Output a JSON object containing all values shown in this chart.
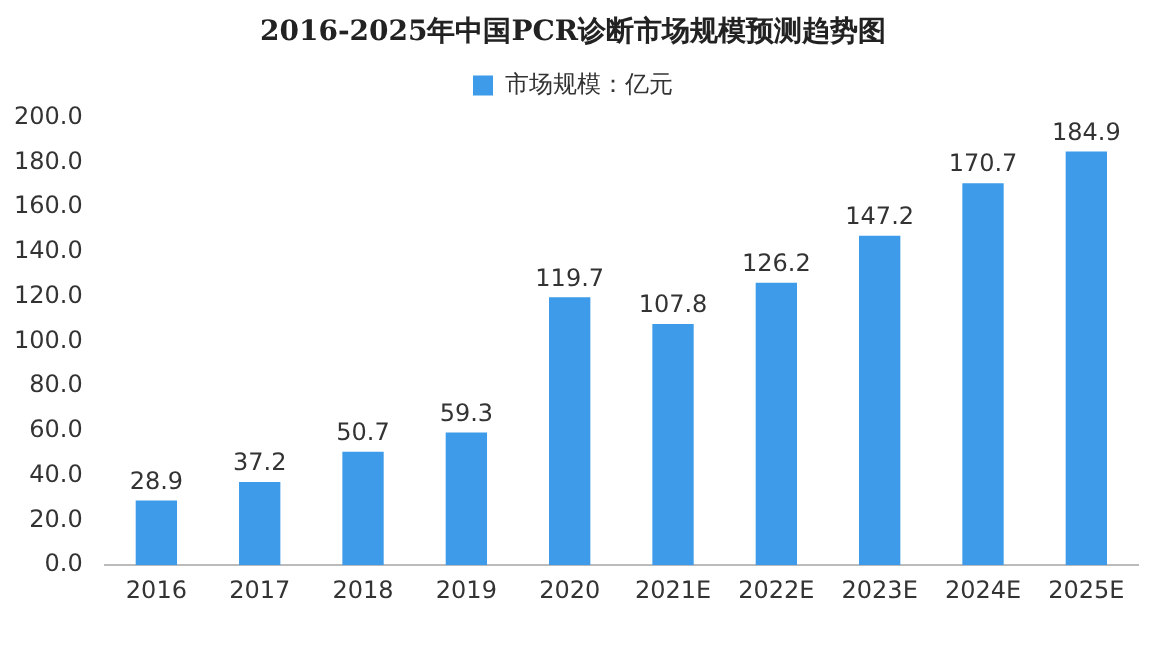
{
  "chart_data": {
    "type": "bar",
    "title": "2016-2025年中国PCR诊断市场规模预测趋势图",
    "categories": [
      "2016",
      "2017",
      "2018",
      "2019",
      "2020",
      "2021E",
      "2022E",
      "2023E",
      "2024E",
      "2025E"
    ],
    "series": [
      {
        "name": "市场规模：亿元",
        "color": "#3d9be9",
        "values": [
          28.9,
          37.2,
          50.7,
          59.3,
          119.7,
          107.8,
          126.2,
          147.2,
          170.7,
          184.9
        ]
      }
    ],
    "ylim": [
      0,
      200
    ],
    "yticks": [
      {
        "value": 0,
        "label": "0.0"
      },
      {
        "value": 20,
        "label": "20.0"
      },
      {
        "value": 40,
        "label": "40.0"
      },
      {
        "value": 60,
        "label": "60.0"
      },
      {
        "value": 80,
        "label": "80.0"
      },
      {
        "value": 100,
        "label": "100.0"
      },
      {
        "value": 120,
        "label": "120.0"
      },
      {
        "value": 140,
        "label": "140.0"
      },
      {
        "value": 160,
        "label": "160.0"
      },
      {
        "value": 180,
        "label": "180.0"
      },
      {
        "value": 200,
        "label": "200.0"
      }
    ],
    "data_labels": true,
    "legend": "top",
    "grid": false
  }
}
